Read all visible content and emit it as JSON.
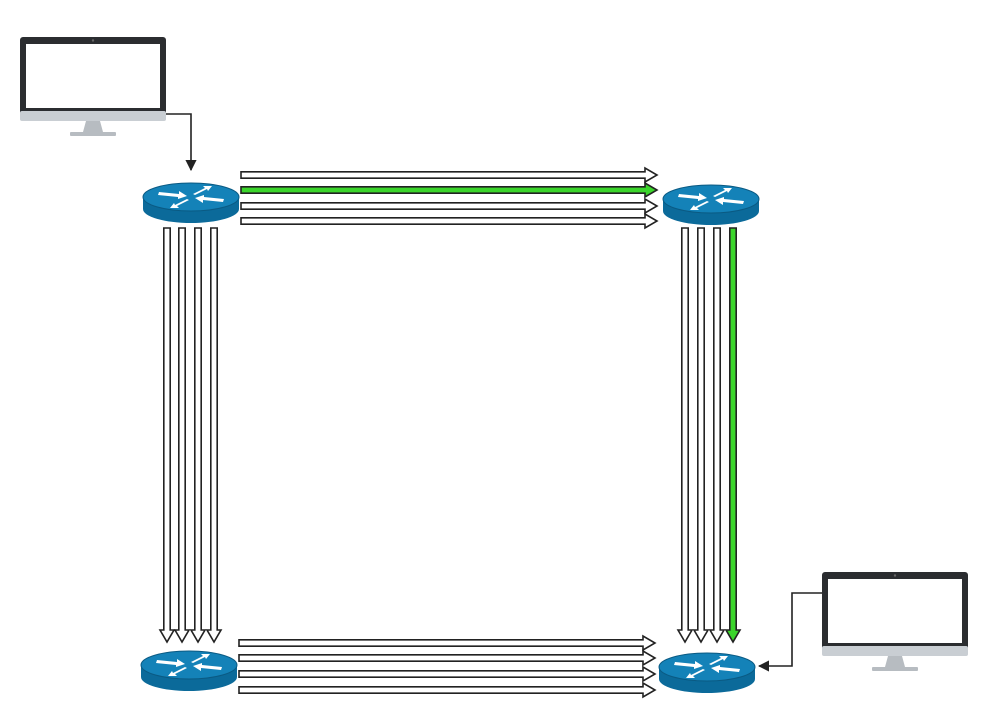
{
  "diagram": {
    "kind": "network-path-diagram",
    "colors": {
      "background": "#ffffff",
      "router_body": "#0b6a9a",
      "router_top": "#1482b8",
      "router_arrow": "#ffffff",
      "monitor_frame": "#2b2d30",
      "monitor_screen": "#ffffff",
      "monitor_chin": "#c9ced3",
      "monitor_stand": "#b7bcc1",
      "link_default": "#ffffff",
      "link_outline": "#222222",
      "link_selected": "#3bd52b"
    },
    "nodes": [
      {
        "id": "monitor-top-left",
        "type": "computer",
        "icon": "monitor-icon"
      },
      {
        "id": "router-top-left",
        "type": "router",
        "icon": "router-icon"
      },
      {
        "id": "router-top-right",
        "type": "router",
        "icon": "router-icon"
      },
      {
        "id": "router-bottom-left",
        "type": "router",
        "icon": "router-icon"
      },
      {
        "id": "router-bottom-right",
        "type": "router",
        "icon": "router-icon"
      },
      {
        "id": "monitor-bottom-right",
        "type": "computer",
        "icon": "monitor-icon"
      }
    ],
    "link_groups": [
      {
        "id": "top",
        "from": "router-top-left",
        "to": "router-top-right",
        "count": 4,
        "highlighted_index": 1
      },
      {
        "id": "left",
        "from": "router-top-left",
        "to": "router-bottom-left",
        "count": 4,
        "highlighted_index": null
      },
      {
        "id": "right",
        "from": "router-top-right",
        "to": "router-bottom-right",
        "count": 4,
        "highlighted_index": 3
      },
      {
        "id": "bottom",
        "from": "router-bottom-left",
        "to": "router-bottom-right",
        "count": 4,
        "highlighted_index": null
      }
    ],
    "connectors": [
      {
        "from": "monitor-top-left",
        "to": "router-top-left"
      },
      {
        "from": "monitor-bottom-right",
        "to": "router-bottom-right"
      }
    ]
  }
}
